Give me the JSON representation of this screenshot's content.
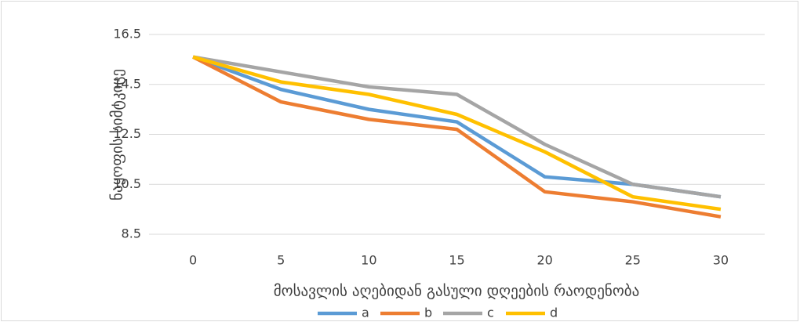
{
  "chart_data": {
    "type": "line",
    "y_label": "ნაყოფის სიმტკიცე",
    "x_label": "მოსავლის აღებიდან გასული დღეების რაოდენობა",
    "x": [
      0,
      5,
      10,
      15,
      20,
      25,
      30
    ],
    "xlim": [
      -2.5,
      32.5
    ],
    "xticks": [
      0,
      5,
      10,
      15,
      20,
      25,
      30
    ],
    "ylim": [
      8.5,
      16.5
    ],
    "yticks": [
      8.5,
      10.5,
      12.5,
      14.5,
      16.5
    ],
    "grid": true,
    "legend": "bottom",
    "series": [
      {
        "name": "a",
        "color": "#5b9bd5",
        "values": [
          15.6,
          14.3,
          13.5,
          13.0,
          10.8,
          10.5,
          10.0
        ]
      },
      {
        "name": "b",
        "color": "#ed7d31",
        "values": [
          15.6,
          13.8,
          13.1,
          12.7,
          10.2,
          9.8,
          9.2
        ]
      },
      {
        "name": "c",
        "color": "#a5a5a5",
        "values": [
          15.6,
          15.0,
          14.4,
          14.1,
          12.1,
          10.5,
          10.0
        ]
      },
      {
        "name": "d",
        "color": "#ffc000",
        "values": [
          15.6,
          14.6,
          14.1,
          13.3,
          11.8,
          10.0,
          9.5
        ]
      }
    ]
  }
}
